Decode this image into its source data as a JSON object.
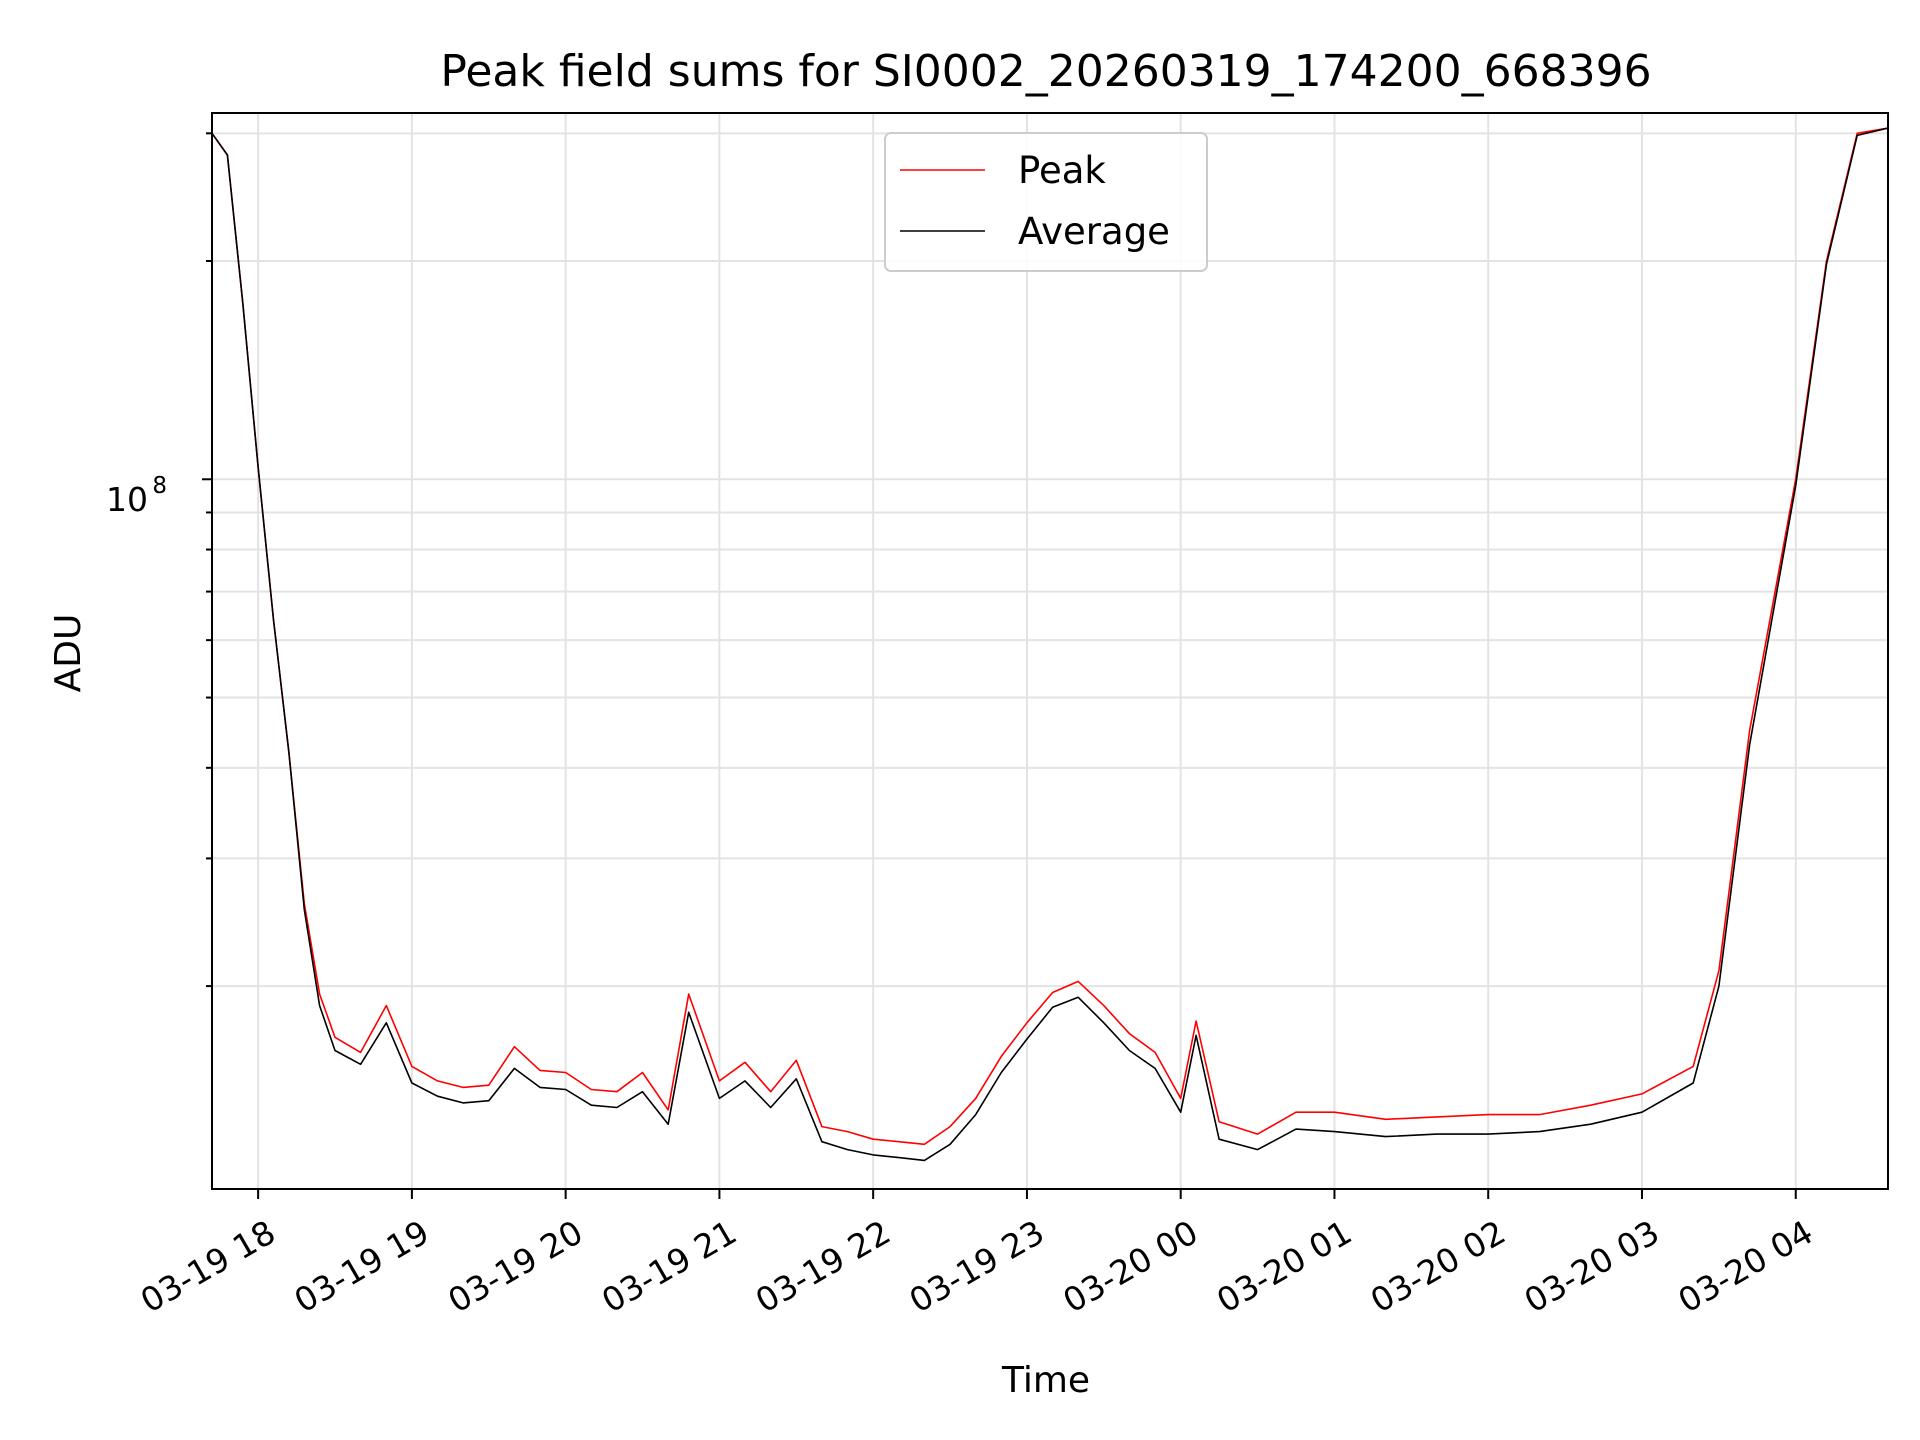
{
  "chart_data": {
    "type": "line",
    "title": "Peak field sums for SI0002_20260319_174200_668396",
    "xlabel": "Time",
    "ylabel": "ADU",
    "y_scale": "log",
    "grid": true,
    "legend_position": "top-center",
    "x_ticks": [
      "03-19 18",
      "03-19 19",
      "03-19 20",
      "03-19 21",
      "03-19 22",
      "03-19 23",
      "03-20 00",
      "03-20 01",
      "03-20 02",
      "03-20 03",
      "03-20 04"
    ],
    "y_major_tick": {
      "mantissa": "10",
      "exponent": "8",
      "value": 100000000
    },
    "xlim": [
      "2026-03-19 17:42",
      "2026-03-20 04:36"
    ],
    "ylim": [
      10500000,
      320000000
    ],
    "series": [
      {
        "name": "Peak",
        "color": "#ff0000",
        "points": [
          [
            "2026-03-19 17:42",
            300000000
          ],
          [
            "2026-03-19 17:48",
            280000000
          ],
          [
            "2026-03-19 17:54",
            175000000
          ],
          [
            "2026-03-19 18:00",
            104000000
          ],
          [
            "2026-03-19 18:06",
            64000000
          ],
          [
            "2026-03-19 18:12",
            42000000
          ],
          [
            "2026-03-19 18:18",
            26000000
          ],
          [
            "2026-03-19 18:24",
            19500000
          ],
          [
            "2026-03-19 18:30",
            17000000
          ],
          [
            "2026-03-19 18:40",
            16200000
          ],
          [
            "2026-03-19 18:50",
            18800000
          ],
          [
            "2026-03-19 19:00",
            15500000
          ],
          [
            "2026-03-19 19:10",
            14800000
          ],
          [
            "2026-03-19 19:20",
            14500000
          ],
          [
            "2026-03-19 19:30",
            14600000
          ],
          [
            "2026-03-19 19:40",
            16500000
          ],
          [
            "2026-03-19 19:50",
            15300000
          ],
          [
            "2026-03-19 20:00",
            15200000
          ],
          [
            "2026-03-19 20:10",
            14400000
          ],
          [
            "2026-03-19 20:20",
            14300000
          ],
          [
            "2026-03-19 20:30",
            15200000
          ],
          [
            "2026-03-19 20:40",
            13500000
          ],
          [
            "2026-03-19 20:48",
            19500000
          ],
          [
            "2026-03-19 21:00",
            14800000
          ],
          [
            "2026-03-19 21:10",
            15700000
          ],
          [
            "2026-03-19 21:20",
            14300000
          ],
          [
            "2026-03-19 21:30",
            15800000
          ],
          [
            "2026-03-19 21:40",
            12800000
          ],
          [
            "2026-03-19 21:50",
            12600000
          ],
          [
            "2026-03-19 22:00",
            12300000
          ],
          [
            "2026-03-19 22:10",
            12200000
          ],
          [
            "2026-03-19 22:20",
            12100000
          ],
          [
            "2026-03-19 22:30",
            12800000
          ],
          [
            "2026-03-19 22:40",
            14000000
          ],
          [
            "2026-03-19 22:50",
            16000000
          ],
          [
            "2026-03-19 23:00",
            17800000
          ],
          [
            "2026-03-19 23:10",
            19600000
          ],
          [
            "2026-03-19 23:20",
            20300000
          ],
          [
            "2026-03-19 23:30",
            18800000
          ],
          [
            "2026-03-19 23:40",
            17200000
          ],
          [
            "2026-03-19 23:50",
            16200000
          ],
          [
            "2026-03-20 00:00",
            14000000
          ],
          [
            "2026-03-20 00:06",
            17900000
          ],
          [
            "2026-03-20 00:15",
            13000000
          ],
          [
            "2026-03-20 00:30",
            12500000
          ],
          [
            "2026-03-20 00:45",
            13400000
          ],
          [
            "2026-03-20 01:00",
            13400000
          ],
          [
            "2026-03-20 01:20",
            13100000
          ],
          [
            "2026-03-20 01:40",
            13200000
          ],
          [
            "2026-03-20 02:00",
            13300000
          ],
          [
            "2026-03-20 02:20",
            13300000
          ],
          [
            "2026-03-20 02:40",
            13700000
          ],
          [
            "2026-03-20 03:00",
            14200000
          ],
          [
            "2026-03-20 03:20",
            15500000
          ],
          [
            "2026-03-20 03:30",
            21000000
          ],
          [
            "2026-03-20 03:42",
            45000000
          ],
          [
            "2026-03-20 04:00",
            100000000
          ],
          [
            "2026-03-20 04:12",
            200000000
          ],
          [
            "2026-03-20 04:24",
            300000000
          ],
          [
            "2026-03-20 04:36",
            305000000
          ]
        ]
      },
      {
        "name": "Average",
        "color": "#000000",
        "points": [
          [
            "2026-03-19 17:42",
            300000000
          ],
          [
            "2026-03-19 17:48",
            280000000
          ],
          [
            "2026-03-19 17:54",
            175000000
          ],
          [
            "2026-03-19 18:00",
            104000000
          ],
          [
            "2026-03-19 18:06",
            64000000
          ],
          [
            "2026-03-19 18:12",
            42000000
          ],
          [
            "2026-03-19 18:18",
            25500000
          ],
          [
            "2026-03-19 18:24",
            18800000
          ],
          [
            "2026-03-19 18:30",
            16300000
          ],
          [
            "2026-03-19 18:40",
            15600000
          ],
          [
            "2026-03-19 18:50",
            17800000
          ],
          [
            "2026-03-19 19:00",
            14700000
          ],
          [
            "2026-03-19 19:10",
            14100000
          ],
          [
            "2026-03-19 19:20",
            13800000
          ],
          [
            "2026-03-19 19:30",
            13900000
          ],
          [
            "2026-03-19 19:40",
            15400000
          ],
          [
            "2026-03-19 19:50",
            14500000
          ],
          [
            "2026-03-19 20:00",
            14400000
          ],
          [
            "2026-03-19 20:10",
            13700000
          ],
          [
            "2026-03-19 20:20",
            13600000
          ],
          [
            "2026-03-19 20:30",
            14300000
          ],
          [
            "2026-03-19 20:40",
            12900000
          ],
          [
            "2026-03-19 20:48",
            18400000
          ],
          [
            "2026-03-19 21:00",
            14000000
          ],
          [
            "2026-03-19 21:10",
            14800000
          ],
          [
            "2026-03-19 21:20",
            13600000
          ],
          [
            "2026-03-19 21:30",
            14900000
          ],
          [
            "2026-03-19 21:40",
            12200000
          ],
          [
            "2026-03-19 21:50",
            11900000
          ],
          [
            "2026-03-19 22:00",
            11700000
          ],
          [
            "2026-03-19 22:10",
            11600000
          ],
          [
            "2026-03-19 22:20",
            11500000
          ],
          [
            "2026-03-19 22:30",
            12100000
          ],
          [
            "2026-03-19 22:40",
            13300000
          ],
          [
            "2026-03-19 22:50",
            15200000
          ],
          [
            "2026-03-19 23:00",
            16900000
          ],
          [
            "2026-03-19 23:10",
            18700000
          ],
          [
            "2026-03-19 23:20",
            19300000
          ],
          [
            "2026-03-19 23:30",
            17800000
          ],
          [
            "2026-03-19 23:40",
            16300000
          ],
          [
            "2026-03-19 23:50",
            15400000
          ],
          [
            "2026-03-20 00:00",
            13400000
          ],
          [
            "2026-03-20 00:06",
            17100000
          ],
          [
            "2026-03-20 00:15",
            12300000
          ],
          [
            "2026-03-20 00:30",
            11900000
          ],
          [
            "2026-03-20 00:45",
            12700000
          ],
          [
            "2026-03-20 01:00",
            12600000
          ],
          [
            "2026-03-20 01:20",
            12400000
          ],
          [
            "2026-03-20 01:40",
            12500000
          ],
          [
            "2026-03-20 02:00",
            12500000
          ],
          [
            "2026-03-20 02:20",
            12600000
          ],
          [
            "2026-03-20 02:40",
            12900000
          ],
          [
            "2026-03-20 03:00",
            13400000
          ],
          [
            "2026-03-20 03:20",
            14700000
          ],
          [
            "2026-03-20 03:30",
            20000000
          ],
          [
            "2026-03-20 03:42",
            43000000
          ],
          [
            "2026-03-20 04:00",
            98000000
          ],
          [
            "2026-03-20 04:12",
            198000000
          ],
          [
            "2026-03-20 04:24",
            298000000
          ],
          [
            "2026-03-20 04:36",
            305000000
          ]
        ]
      }
    ]
  }
}
